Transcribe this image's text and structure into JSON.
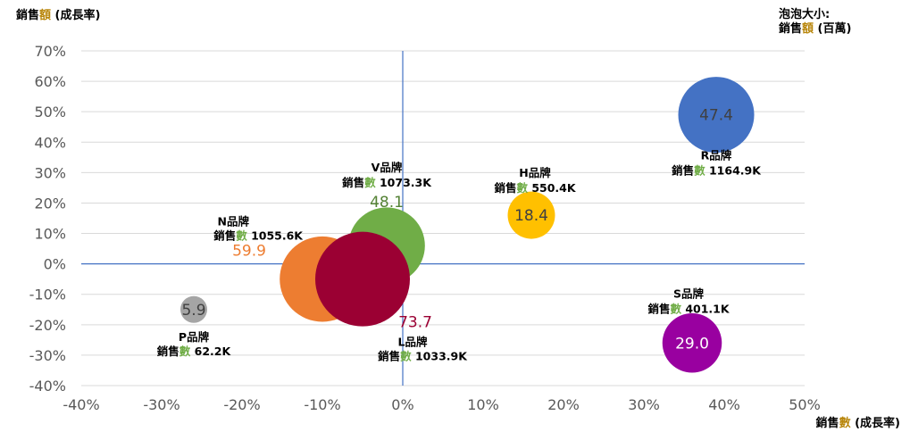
{
  "chart_data": {
    "type": "bubble",
    "ylabel_parts": [
      "銷售",
      "額",
      " (成長率)"
    ],
    "xlabel_parts": [
      "銷售",
      "數",
      " (成長率)"
    ],
    "size_note_line1": "泡泡大小:",
    "size_note_parts": [
      "銷售",
      "額",
      " (百萬)"
    ],
    "xlim": [
      -0.4,
      0.5
    ],
    "ylim": [
      -0.4,
      0.7
    ],
    "x_ticks": [
      -0.4,
      -0.3,
      -0.2,
      -0.1,
      0,
      0.1,
      0.2,
      0.3,
      0.4,
      0.5
    ],
    "y_ticks": [
      -0.4,
      -0.3,
      -0.2,
      -0.1,
      0,
      0.1,
      0.2,
      0.3,
      0.4,
      0.5,
      0.6,
      0.7
    ],
    "x_tick_labels": [
      "-40%",
      "-30%",
      "-20%",
      "-10%",
      "0%",
      "10%",
      "20%",
      "30%",
      "40%",
      "50%"
    ],
    "y_tick_labels": [
      "-40%",
      "-30%",
      "-20%",
      "-10%",
      "0%",
      "10%",
      "20%",
      "30%",
      "40%",
      "50%",
      "60%",
      "70%"
    ],
    "gridlines": "horizontal",
    "accent_color": "#b8860b",
    "grid_color": "#d9d9d9",
    "reference_line_color": "#4472c4",
    "series": [
      {
        "name": "N品牌",
        "x": -0.1,
        "y": -0.05,
        "value": 59.9,
        "value_label": "59.9",
        "count_prefix": "銷售",
        "count_word": "數",
        "count_value": " 1055.6K",
        "color": "#ed7d31",
        "value_color": "#ed7d31"
      },
      {
        "name": "V品牌",
        "x": -0.02,
        "y": 0.06,
        "value": 48.1,
        "value_label": "48.1",
        "count_prefix": "銷售",
        "count_word": "數",
        "count_value": " 1073.3K",
        "color": "#70ad47",
        "value_color": "#548235"
      },
      {
        "name": "L品牌",
        "x": -0.05,
        "y": -0.05,
        "value": 73.7,
        "value_label": "73.7",
        "count_prefix": "銷售",
        "count_word": "數",
        "count_value": " 1033.9K",
        "color": "#9b0033",
        "value_color": "#9b0033"
      },
      {
        "name": "P品牌",
        "x": -0.26,
        "y": -0.15,
        "value": 5.9,
        "value_label": "5.9",
        "count_prefix": "銷售",
        "count_word": "數",
        "count_value": " 62.2K",
        "color": "#a5a5a5",
        "value_color": "#404040"
      },
      {
        "name": "H品牌",
        "x": 0.16,
        "y": 0.16,
        "value": 18.4,
        "value_label": "18.4",
        "count_prefix": "銷售",
        "count_word": "數",
        "count_value": " 550.4K",
        "color": "#ffc000",
        "value_color": "#404040"
      },
      {
        "name": "R品牌",
        "x": 0.39,
        "y": 0.49,
        "value": 47.4,
        "value_label": "47.4",
        "count_prefix": "銷售",
        "count_word": "數",
        "count_value": " 1164.9K",
        "color": "#4472c4",
        "value_color": "#404040"
      },
      {
        "name": "S品牌",
        "x": 0.36,
        "y": -0.26,
        "value": 29.0,
        "value_label": "29.0",
        "count_prefix": "銷售",
        "count_word": "數",
        "count_value": " 401.1K",
        "color": "#9900a0",
        "value_color": "#ffffff"
      }
    ]
  }
}
